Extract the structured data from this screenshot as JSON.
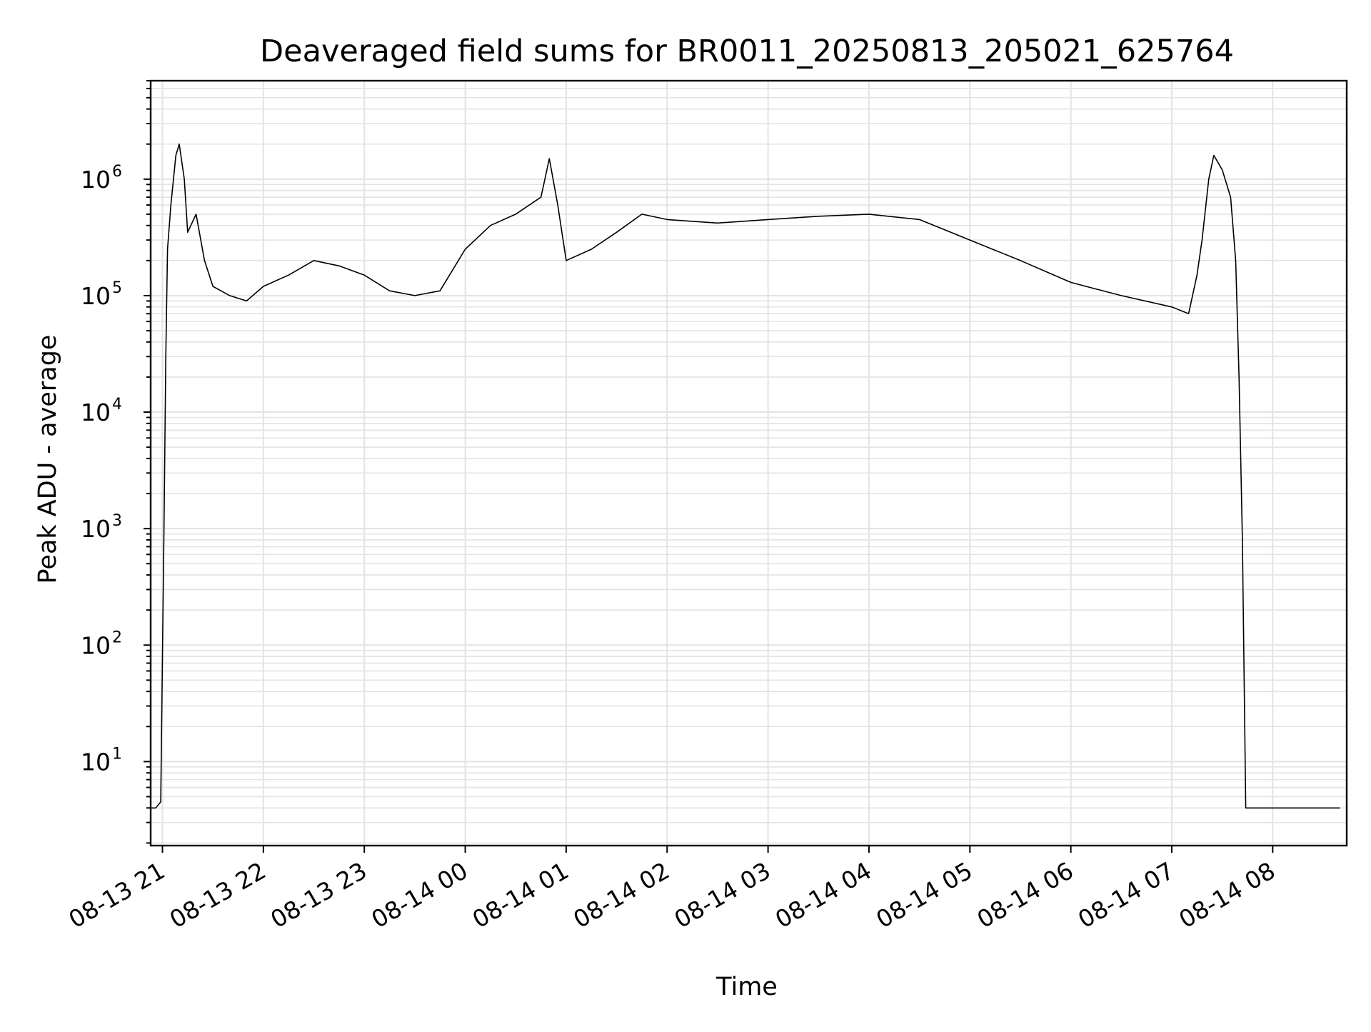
{
  "chart_data": {
    "type": "line",
    "title": "Deaveraged field sums for BR0011_20250813_205021_625764",
    "xlabel": "Time",
    "ylabel": "Peak ADU - average",
    "yscale": "log",
    "grid": true,
    "grid_minor": true,
    "ylim": [
      1.9,
      7000000
    ],
    "xlim": [
      "2025-08-13 20:53",
      "2025-08-14 08:44"
    ],
    "x_ticks": [
      {
        "label": "08-13 21",
        "time": "2025-08-13 21:00"
      },
      {
        "label": "08-13 22",
        "time": "2025-08-13 22:00"
      },
      {
        "label": "08-13 23",
        "time": "2025-08-13 23:00"
      },
      {
        "label": "08-14 00",
        "time": "2025-08-14 00:00"
      },
      {
        "label": "08-14 01",
        "time": "2025-08-14 01:00"
      },
      {
        "label": "08-14 02",
        "time": "2025-08-14 02:00"
      },
      {
        "label": "08-14 03",
        "time": "2025-08-14 03:00"
      },
      {
        "label": "08-14 04",
        "time": "2025-08-14 04:00"
      },
      {
        "label": "08-14 05",
        "time": "2025-08-14 05:00"
      },
      {
        "label": "08-14 06",
        "time": "2025-08-14 06:00"
      },
      {
        "label": "08-14 07",
        "time": "2025-08-14 07:00"
      },
      {
        "label": "08-14 08",
        "time": "2025-08-14 08:00"
      }
    ],
    "y_ticks": [
      {
        "base": "10",
        "exp": "1",
        "value": 10
      },
      {
        "base": "10",
        "exp": "2",
        "value": 100
      },
      {
        "base": "10",
        "exp": "3",
        "value": 1000
      },
      {
        "base": "10",
        "exp": "4",
        "value": 10000
      },
      {
        "base": "10",
        "exp": "5",
        "value": 100000
      },
      {
        "base": "10",
        "exp": "6",
        "value": 1000000
      }
    ],
    "series": [
      {
        "color": "#000000",
        "points": [
          [
            "2025-08-13 20:53",
            4
          ],
          [
            "2025-08-13 20:56",
            4
          ],
          [
            "2025-08-13 20:59",
            4.5
          ],
          [
            "2025-08-13 21:00",
            80
          ],
          [
            "2025-08-13 21:01",
            1200
          ],
          [
            "2025-08-13 21:02",
            30000
          ],
          [
            "2025-08-13 21:03",
            250000
          ],
          [
            "2025-08-13 21:05",
            600000
          ],
          [
            "2025-08-13 21:08",
            1600000
          ],
          [
            "2025-08-13 21:10",
            2000000
          ],
          [
            "2025-08-13 21:13",
            1000000
          ],
          [
            "2025-08-13 21:15",
            350000
          ],
          [
            "2025-08-13 21:20",
            500000
          ],
          [
            "2025-08-13 21:25",
            200000
          ],
          [
            "2025-08-13 21:30",
            120000
          ],
          [
            "2025-08-13 21:40",
            100000
          ],
          [
            "2025-08-13 21:50",
            90000
          ],
          [
            "2025-08-13 22:00",
            120000
          ],
          [
            "2025-08-13 22:15",
            150000
          ],
          [
            "2025-08-13 22:30",
            200000
          ],
          [
            "2025-08-13 22:45",
            180000
          ],
          [
            "2025-08-13 23:00",
            150000
          ],
          [
            "2025-08-13 23:15",
            110000
          ],
          [
            "2025-08-13 23:30",
            100000
          ],
          [
            "2025-08-13 23:45",
            110000
          ],
          [
            "2025-08-14 00:00",
            250000
          ],
          [
            "2025-08-14 00:15",
            400000
          ],
          [
            "2025-08-14 00:30",
            500000
          ],
          [
            "2025-08-14 00:45",
            700000
          ],
          [
            "2025-08-14 00:50",
            1500000
          ],
          [
            "2025-08-14 00:55",
            600000
          ],
          [
            "2025-08-14 01:00",
            200000
          ],
          [
            "2025-08-14 01:15",
            250000
          ],
          [
            "2025-08-14 01:30",
            350000
          ],
          [
            "2025-08-14 01:45",
            500000
          ],
          [
            "2025-08-14 02:00",
            450000
          ],
          [
            "2025-08-14 02:30",
            420000
          ],
          [
            "2025-08-14 03:00",
            450000
          ],
          [
            "2025-08-14 03:30",
            480000
          ],
          [
            "2025-08-14 04:00",
            500000
          ],
          [
            "2025-08-14 04:30",
            450000
          ],
          [
            "2025-08-14 05:00",
            300000
          ],
          [
            "2025-08-14 05:30",
            200000
          ],
          [
            "2025-08-14 06:00",
            130000
          ],
          [
            "2025-08-14 06:30",
            100000
          ],
          [
            "2025-08-14 07:00",
            80000
          ],
          [
            "2025-08-14 07:10",
            70000
          ],
          [
            "2025-08-14 07:15",
            150000
          ],
          [
            "2025-08-14 07:18",
            300000
          ],
          [
            "2025-08-14 07:22",
            1000000
          ],
          [
            "2025-08-14 07:25",
            1600000
          ],
          [
            "2025-08-14 07:30",
            1200000
          ],
          [
            "2025-08-14 07:35",
            700000
          ],
          [
            "2025-08-14 07:38",
            200000
          ],
          [
            "2025-08-14 07:40",
            20000
          ],
          [
            "2025-08-14 07:42",
            800
          ],
          [
            "2025-08-14 07:44",
            4
          ],
          [
            "2025-08-14 08:40",
            4
          ]
        ]
      }
    ]
  }
}
